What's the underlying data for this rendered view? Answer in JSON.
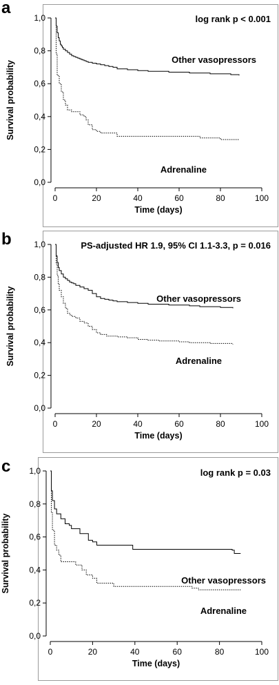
{
  "chart_data": [
    {
      "panel": "a",
      "type": "line",
      "xlabel": "Time (days)",
      "ylabel": "Survival probability",
      "xlim": [
        0,
        100
      ],
      "ylim": [
        0,
        1
      ],
      "xticks": [
        "0",
        "20",
        "40",
        "60",
        "80",
        "100"
      ],
      "yticks": [
        "0,0",
        "0,2",
        "0,4",
        "0,6",
        "0,8",
        "1,0"
      ],
      "annotation": "log rank p < 0.001",
      "grid": false,
      "series": [
        {
          "name": "Other vasopressors",
          "line_style": "solid",
          "x": [
            0,
            0.5,
            1,
            1.5,
            2,
            2.5,
            3,
            3.5,
            4,
            5,
            6,
            7,
            8,
            9,
            10,
            11,
            12,
            13,
            14,
            15,
            16,
            18,
            20,
            22,
            24,
            26,
            28,
            30,
            35,
            40,
            45,
            50,
            55,
            60,
            65,
            70,
            75,
            80,
            85,
            89
          ],
          "y": [
            1.0,
            0.95,
            0.91,
            0.88,
            0.86,
            0.84,
            0.83,
            0.82,
            0.81,
            0.8,
            0.79,
            0.78,
            0.77,
            0.765,
            0.76,
            0.755,
            0.75,
            0.745,
            0.74,
            0.735,
            0.73,
            0.725,
            0.72,
            0.715,
            0.71,
            0.705,
            0.7,
            0.69,
            0.685,
            0.68,
            0.675,
            0.675,
            0.67,
            0.67,
            0.665,
            0.665,
            0.66,
            0.66,
            0.655,
            0.65
          ]
        },
        {
          "name": "Adrenaline",
          "line_style": "dotted",
          "x": [
            0,
            0.5,
            1,
            2,
            3,
            4,
            5,
            6,
            8,
            10,
            12,
            14,
            15,
            16,
            18,
            20,
            22,
            25,
            30,
            40,
            50,
            60,
            70,
            80,
            89
          ],
          "y": [
            1.0,
            0.78,
            0.65,
            0.6,
            0.55,
            0.5,
            0.47,
            0.44,
            0.43,
            0.43,
            0.41,
            0.4,
            0.38,
            0.35,
            0.32,
            0.31,
            0.3,
            0.3,
            0.28,
            0.28,
            0.28,
            0.28,
            0.27,
            0.26,
            0.26
          ]
        }
      ]
    },
    {
      "panel": "b",
      "type": "line",
      "xlabel": "Time (days)",
      "ylabel": "Survival probability",
      "xlim": [
        0,
        100
      ],
      "ylim": [
        0,
        1
      ],
      "xticks": [
        "0",
        "20",
        "40",
        "60",
        "80",
        "100"
      ],
      "yticks": [
        "0,0",
        "0,2",
        "0,4",
        "0,6",
        "0,8",
        "1,0"
      ],
      "annotation": "PS-adjusted HR 1.9, 95% CI 1.1-3.3, p = 0.016",
      "grid": false,
      "series": [
        {
          "name": "Other vasopressors",
          "line_style": "solid",
          "x": [
            0,
            0.5,
            1,
            1.5,
            2,
            3,
            4,
            5,
            6,
            7,
            8,
            9,
            10,
            12,
            14,
            16,
            18,
            20,
            22,
            24,
            26,
            28,
            30,
            35,
            40,
            45,
            50,
            55,
            60,
            65,
            70,
            75,
            80,
            86
          ],
          "y": [
            1.0,
            0.93,
            0.89,
            0.86,
            0.84,
            0.82,
            0.8,
            0.79,
            0.78,
            0.77,
            0.765,
            0.76,
            0.75,
            0.74,
            0.73,
            0.72,
            0.7,
            0.68,
            0.67,
            0.665,
            0.66,
            0.655,
            0.65,
            0.645,
            0.64,
            0.635,
            0.635,
            0.63,
            0.63,
            0.625,
            0.62,
            0.62,
            0.615,
            0.61
          ]
        },
        {
          "name": "Adrenaline",
          "line_style": "dotted",
          "x": [
            0,
            0.5,
            1,
            1.5,
            2,
            3,
            4,
            5,
            6,
            7,
            8,
            10,
            12,
            14,
            16,
            18,
            20,
            22,
            25,
            30,
            35,
            40,
            45,
            50,
            55,
            60,
            65,
            70,
            75,
            80,
            86
          ],
          "y": [
            1.0,
            0.88,
            0.81,
            0.76,
            0.72,
            0.68,
            0.64,
            0.61,
            0.58,
            0.57,
            0.56,
            0.55,
            0.53,
            0.52,
            0.5,
            0.48,
            0.46,
            0.45,
            0.44,
            0.435,
            0.43,
            0.42,
            0.415,
            0.41,
            0.41,
            0.405,
            0.4,
            0.4,
            0.395,
            0.395,
            0.39
          ]
        }
      ]
    },
    {
      "panel": "c",
      "type": "line",
      "xlabel": "Time (days)",
      "ylabel": "Survival probability",
      "xlim": [
        0,
        100
      ],
      "ylim": [
        0,
        1
      ],
      "xticks": [
        "0",
        "20",
        "40",
        "60",
        "80",
        "100"
      ],
      "yticks": [
        "0,0",
        "0,2",
        "0,4",
        "0,6",
        "0,8",
        "1,0"
      ],
      "annotation": "log rank p = 0.03",
      "grid": false,
      "series": [
        {
          "name": "Other vasopressors",
          "line_style": "solid",
          "x": [
            0,
            0.5,
            1,
            2,
            3,
            5,
            7,
            9,
            10,
            12,
            14,
            18,
            20,
            22,
            25,
            30,
            39,
            45,
            50,
            60,
            70,
            80,
            86,
            87,
            90
          ],
          "y": [
            1.0,
            0.88,
            0.82,
            0.77,
            0.74,
            0.71,
            0.68,
            0.67,
            0.65,
            0.65,
            0.62,
            0.58,
            0.57,
            0.55,
            0.55,
            0.55,
            0.525,
            0.525,
            0.525,
            0.525,
            0.525,
            0.525,
            0.52,
            0.5,
            0.5
          ]
        },
        {
          "name": "Adrenaline",
          "line_style": "dotted",
          "x": [
            0,
            0.5,
            1,
            2,
            3,
            4,
            5,
            10,
            12,
            15,
            17,
            20,
            22,
            30,
            40,
            50,
            60,
            67,
            70,
            80,
            90
          ],
          "y": [
            1.0,
            0.75,
            0.64,
            0.55,
            0.52,
            0.49,
            0.45,
            0.45,
            0.43,
            0.4,
            0.37,
            0.35,
            0.32,
            0.3,
            0.3,
            0.3,
            0.3,
            0.29,
            0.28,
            0.28,
            0.28
          ]
        }
      ]
    }
  ]
}
